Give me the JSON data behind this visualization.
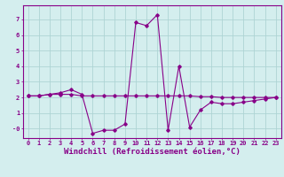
{
  "xlabel": "Windchill (Refroidissement éolien,°C)",
  "background_color": "#d4eeee",
  "grid_color": "#aed4d4",
  "line_color": "#880088",
  "x_values": [
    0,
    1,
    2,
    3,
    4,
    5,
    6,
    7,
    8,
    9,
    10,
    11,
    12,
    13,
    14,
    15,
    16,
    17,
    18,
    19,
    20,
    21,
    22,
    23
  ],
  "y_line1": [
    2.1,
    2.1,
    2.2,
    2.2,
    2.2,
    2.1,
    2.1,
    2.1,
    2.1,
    2.1,
    2.1,
    2.1,
    2.1,
    2.1,
    2.1,
    2.1,
    2.05,
    2.05,
    2.0,
    2.0,
    2.0,
    2.0,
    2.0,
    2.0
  ],
  "y_line2": [
    2.1,
    2.1,
    2.2,
    2.3,
    2.5,
    2.2,
    -0.3,
    -0.1,
    -0.1,
    0.3,
    6.8,
    6.6,
    7.3,
    -0.1,
    4.0,
    0.1,
    1.2,
    1.7,
    1.6,
    1.6,
    1.7,
    1.8,
    1.9,
    2.0
  ],
  "ylim": [
    -0.6,
    7.9
  ],
  "xlim": [
    -0.5,
    23.5
  ],
  "ytick_values": [
    0,
    1,
    2,
    3,
    4,
    5,
    6,
    7
  ],
  "ytick_labels": [
    "-0",
    "1",
    "2",
    "3",
    "4",
    "5",
    "6",
    "7"
  ],
  "xticks": [
    0,
    1,
    2,
    3,
    4,
    5,
    6,
    7,
    8,
    9,
    10,
    11,
    12,
    13,
    14,
    15,
    16,
    17,
    18,
    19,
    20,
    21,
    22,
    23
  ],
  "tick_fontsize": 5.0,
  "xlabel_fontsize": 6.5,
  "marker": "D",
  "marker_size": 1.8,
  "linewidth": 0.8
}
